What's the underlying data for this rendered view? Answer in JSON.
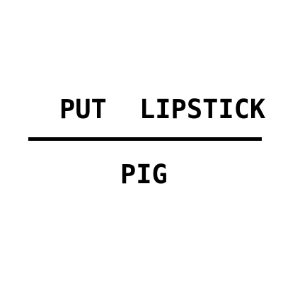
{
  "puzzle": {
    "top_words": [
      "PUT",
      "LIPSTICK"
    ],
    "bottom_words": [
      "PIG"
    ]
  },
  "colors": {
    "text": "#000000",
    "background": "#ffffff",
    "divider": "#000000"
  }
}
